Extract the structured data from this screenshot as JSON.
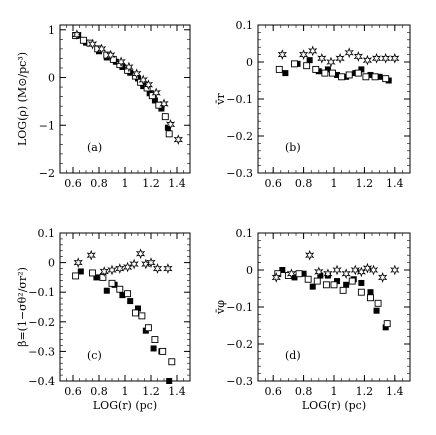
{
  "chart_data": [
    {
      "type": "scatter",
      "panel_label": "(a)",
      "ylabel": "LOG(ρ) (M⊙/pc³)",
      "xlabel": "",
      "xlim": [
        0.5,
        1.5
      ],
      "ylim": [
        -2,
        1.1
      ],
      "xticks": [
        0.6,
        0.8,
        1.0,
        1.2,
        1.4
      ],
      "xtick_labels": [
        "0.6",
        "0.8",
        "1",
        "1.2",
        "1.4"
      ],
      "yticks": [
        -2,
        -1,
        0,
        1
      ],
      "ytick_labels": [
        "−2",
        "−1",
        "0",
        "1"
      ],
      "series": [
        {
          "marker": "filled-square",
          "points": [
            [
              0.64,
              0.88
            ],
            [
              0.7,
              0.73
            ],
            [
              0.8,
              0.55
            ],
            [
              0.86,
              0.42
            ],
            [
              0.93,
              0.33
            ],
            [
              0.98,
              0.22
            ],
            [
              1.04,
              0.1
            ],
            [
              1.1,
              -0.02
            ],
            [
              1.14,
              -0.18
            ],
            [
              1.19,
              -0.33
            ],
            [
              1.23,
              -0.48
            ],
            [
              1.28,
              -0.65
            ],
            [
              1.33,
              -1.05
            ]
          ]
        },
        {
          "marker": "open-square",
          "points": [
            [
              0.62,
              0.88
            ],
            [
              0.68,
              0.78
            ],
            [
              0.73,
              0.72
            ],
            [
              0.79,
              0.6
            ],
            [
              0.86,
              0.47
            ],
            [
              0.91,
              0.38
            ],
            [
              0.96,
              0.27
            ],
            [
              1.02,
              0.15
            ],
            [
              1.08,
              0.03
            ],
            [
              1.12,
              -0.1
            ],
            [
              1.17,
              -0.22
            ],
            [
              1.21,
              -0.38
            ],
            [
              1.26,
              -0.58
            ],
            [
              1.31,
              -0.82
            ],
            [
              1.34,
              -1.18
            ]
          ]
        },
        {
          "marker": "star",
          "points": [
            [
              0.63,
              0.9
            ],
            [
              0.75,
              0.7
            ],
            [
              0.82,
              0.6
            ],
            [
              0.89,
              0.47
            ],
            [
              0.97,
              0.33
            ],
            [
              1.03,
              0.22
            ],
            [
              1.09,
              0.08
            ],
            [
              1.14,
              -0.05
            ],
            [
              1.18,
              -0.15
            ],
            [
              1.24,
              -0.32
            ],
            [
              1.3,
              -0.55
            ],
            [
              1.35,
              -0.98
            ],
            [
              1.41,
              -1.3
            ]
          ]
        }
      ]
    },
    {
      "type": "scatter",
      "panel_label": "(b)",
      "ylabel": "v̄r",
      "xlabel": "",
      "xlim": [
        0.5,
        1.5
      ],
      "ylim": [
        -0.3,
        0.1
      ],
      "xticks": [
        0.6,
        0.8,
        1.0,
        1.2,
        1.4
      ],
      "xtick_labels": [
        "0.6",
        "0.8",
        "1",
        "1.2",
        "1.4"
      ],
      "yticks": [
        -0.3,
        -0.2,
        -0.1,
        0,
        0.1
      ],
      "ytick_labels": [
        "−0.3",
        "−0.2",
        "−0.1",
        "0",
        "0.1"
      ],
      "series": [
        {
          "marker": "filled-square",
          "points": [
            [
              0.68,
              -0.03
            ],
            [
              0.76,
              -0.005
            ],
            [
              0.84,
              0.005
            ],
            [
              0.9,
              -0.025
            ],
            [
              0.96,
              -0.02
            ],
            [
              1.02,
              -0.035
            ],
            [
              1.08,
              -0.04
            ],
            [
              1.14,
              -0.03
            ],
            [
              1.18,
              -0.02
            ],
            [
              1.24,
              -0.035
            ],
            [
              1.3,
              -0.04
            ],
            [
              1.36,
              -0.05
            ]
          ]
        },
        {
          "marker": "open-square",
          "points": [
            [
              0.64,
              -0.02
            ],
            [
              0.74,
              -0.005
            ],
            [
              0.82,
              -0.01
            ],
            [
              0.88,
              -0.02
            ],
            [
              0.94,
              -0.03
            ],
            [
              0.99,
              -0.03
            ],
            [
              1.05,
              -0.04
            ],
            [
              1.1,
              -0.035
            ],
            [
              1.16,
              -0.03
            ],
            [
              1.21,
              -0.04
            ],
            [
              1.27,
              -0.04
            ],
            [
              1.34,
              -0.045
            ]
          ]
        },
        {
          "marker": "star",
          "points": [
            [
              0.66,
              0.02
            ],
            [
              0.8,
              0.02
            ],
            [
              0.86,
              0.03
            ],
            [
              0.92,
              0.01
            ],
            [
              0.98,
              0.0
            ],
            [
              1.04,
              0.01
            ],
            [
              1.1,
              0.025
            ],
            [
              1.16,
              0.015
            ],
            [
              1.22,
              0.005
            ],
            [
              1.28,
              0.01
            ],
            [
              1.34,
              0.01
            ],
            [
              1.4,
              0.01
            ]
          ]
        }
      ]
    },
    {
      "type": "scatter",
      "panel_label": "(c)",
      "ylabel": "β=(1−σθ²/σr²)",
      "xlabel": "LOG(r) (pc)",
      "xlim": [
        0.5,
        1.5
      ],
      "ylim": [
        -0.4,
        0.1
      ],
      "xticks": [
        0.6,
        0.8,
        1.0,
        1.2,
        1.4
      ],
      "xtick_labels": [
        "0.6",
        "0.8",
        "1",
        "1.2",
        "1.4"
      ],
      "yticks": [
        -0.4,
        -0.3,
        -0.2,
        -0.1,
        0,
        0.1
      ],
      "ytick_labels": [
        "−0.4",
        "−0.3",
        "−0.2",
        "−0.1",
        "0",
        "0.1"
      ],
      "series": [
        {
          "marker": "filled-square",
          "points": [
            [
              0.66,
              -0.03
            ],
            [
              0.78,
              -0.05
            ],
            [
              0.86,
              -0.095
            ],
            [
              0.92,
              -0.075
            ],
            [
              0.98,
              -0.11
            ],
            [
              1.04,
              -0.13
            ],
            [
              1.1,
              -0.155
            ],
            [
              1.16,
              -0.23
            ],
            [
              1.22,
              -0.29
            ],
            [
              1.28,
              -0.3
            ],
            [
              1.34,
              -0.4
            ]
          ]
        },
        {
          "marker": "open-square",
          "points": [
            [
              0.62,
              -0.045
            ],
            [
              0.75,
              -0.035
            ],
            [
              0.83,
              -0.05
            ],
            [
              0.9,
              -0.07
            ],
            [
              0.96,
              -0.09
            ],
            [
              1.02,
              -0.105
            ],
            [
              1.08,
              -0.17
            ],
            [
              1.13,
              -0.18
            ],
            [
              1.18,
              -0.22
            ],
            [
              1.23,
              -0.26
            ],
            [
              1.29,
              -0.3
            ],
            [
              1.36,
              -0.335
            ]
          ]
        },
        {
          "marker": "star",
          "points": [
            [
              0.64,
              0.0
            ],
            [
              0.74,
              0.025
            ],
            [
              0.84,
              -0.03
            ],
            [
              0.9,
              -0.025
            ],
            [
              0.96,
              -0.02
            ],
            [
              1.02,
              -0.015
            ],
            [
              1.07,
              -0.005
            ],
            [
              1.12,
              0.03
            ],
            [
              1.16,
              -0.005
            ],
            [
              1.2,
              0.0
            ],
            [
              1.25,
              -0.02
            ],
            [
              1.33,
              -0.02
            ]
          ]
        }
      ]
    },
    {
      "type": "scatter",
      "panel_label": "(d)",
      "ylabel": "v̄φ",
      "xlabel": "LOG(r) (pc)",
      "xlim": [
        0.5,
        1.5
      ],
      "ylim": [
        -0.3,
        0.1
      ],
      "xticks": [
        0.6,
        0.8,
        1.0,
        1.2,
        1.4
      ],
      "xtick_labels": [
        "0.6",
        "0.8",
        "1",
        "1.2",
        "1.4"
      ],
      "yticks": [
        -0.3,
        -0.2,
        -0.1,
        0,
        0.1
      ],
      "ytick_labels": [
        "−0.3",
        "−0.2",
        "−0.1",
        "0",
        "0.1"
      ],
      "series": [
        {
          "marker": "filled-square",
          "points": [
            [
              0.66,
              0.0
            ],
            [
              0.74,
              -0.02
            ],
            [
              0.8,
              -0.01
            ],
            [
              0.86,
              -0.045
            ],
            [
              0.91,
              -0.015
            ],
            [
              0.96,
              -0.015
            ],
            [
              1.02,
              -0.03
            ],
            [
              1.08,
              -0.04
            ],
            [
              1.13,
              -0.025
            ],
            [
              1.18,
              -0.035
            ],
            [
              1.24,
              -0.06
            ],
            [
              1.28,
              -0.11
            ],
            [
              1.34,
              -0.155
            ]
          ]
        },
        {
          "marker": "open-square",
          "points": [
            [
              0.63,
              -0.01
            ],
            [
              0.7,
              -0.015
            ],
            [
              0.77,
              -0.01
            ],
            [
              0.83,
              -0.025
            ],
            [
              0.89,
              -0.03
            ],
            [
              0.95,
              -0.04
            ],
            [
              1.0,
              -0.04
            ],
            [
              1.06,
              -0.055
            ],
            [
              1.12,
              -0.03
            ],
            [
              1.18,
              -0.06
            ],
            [
              1.24,
              -0.075
            ],
            [
              1.29,
              -0.09
            ],
            [
              1.35,
              -0.145
            ]
          ]
        },
        {
          "marker": "star",
          "points": [
            [
              0.62,
              -0.02
            ],
            [
              0.72,
              -0.01
            ],
            [
              0.84,
              0.04
            ],
            [
              0.9,
              -0.005
            ],
            [
              0.96,
              -0.01
            ],
            [
              1.02,
              0.0
            ],
            [
              1.08,
              -0.01
            ],
            [
              1.14,
              0.0
            ],
            [
              1.18,
              -0.005
            ],
            [
              1.22,
              0.005
            ],
            [
              1.26,
              0.0
            ],
            [
              1.32,
              -0.02
            ],
            [
              1.4,
              0.0
            ]
          ]
        }
      ]
    }
  ]
}
